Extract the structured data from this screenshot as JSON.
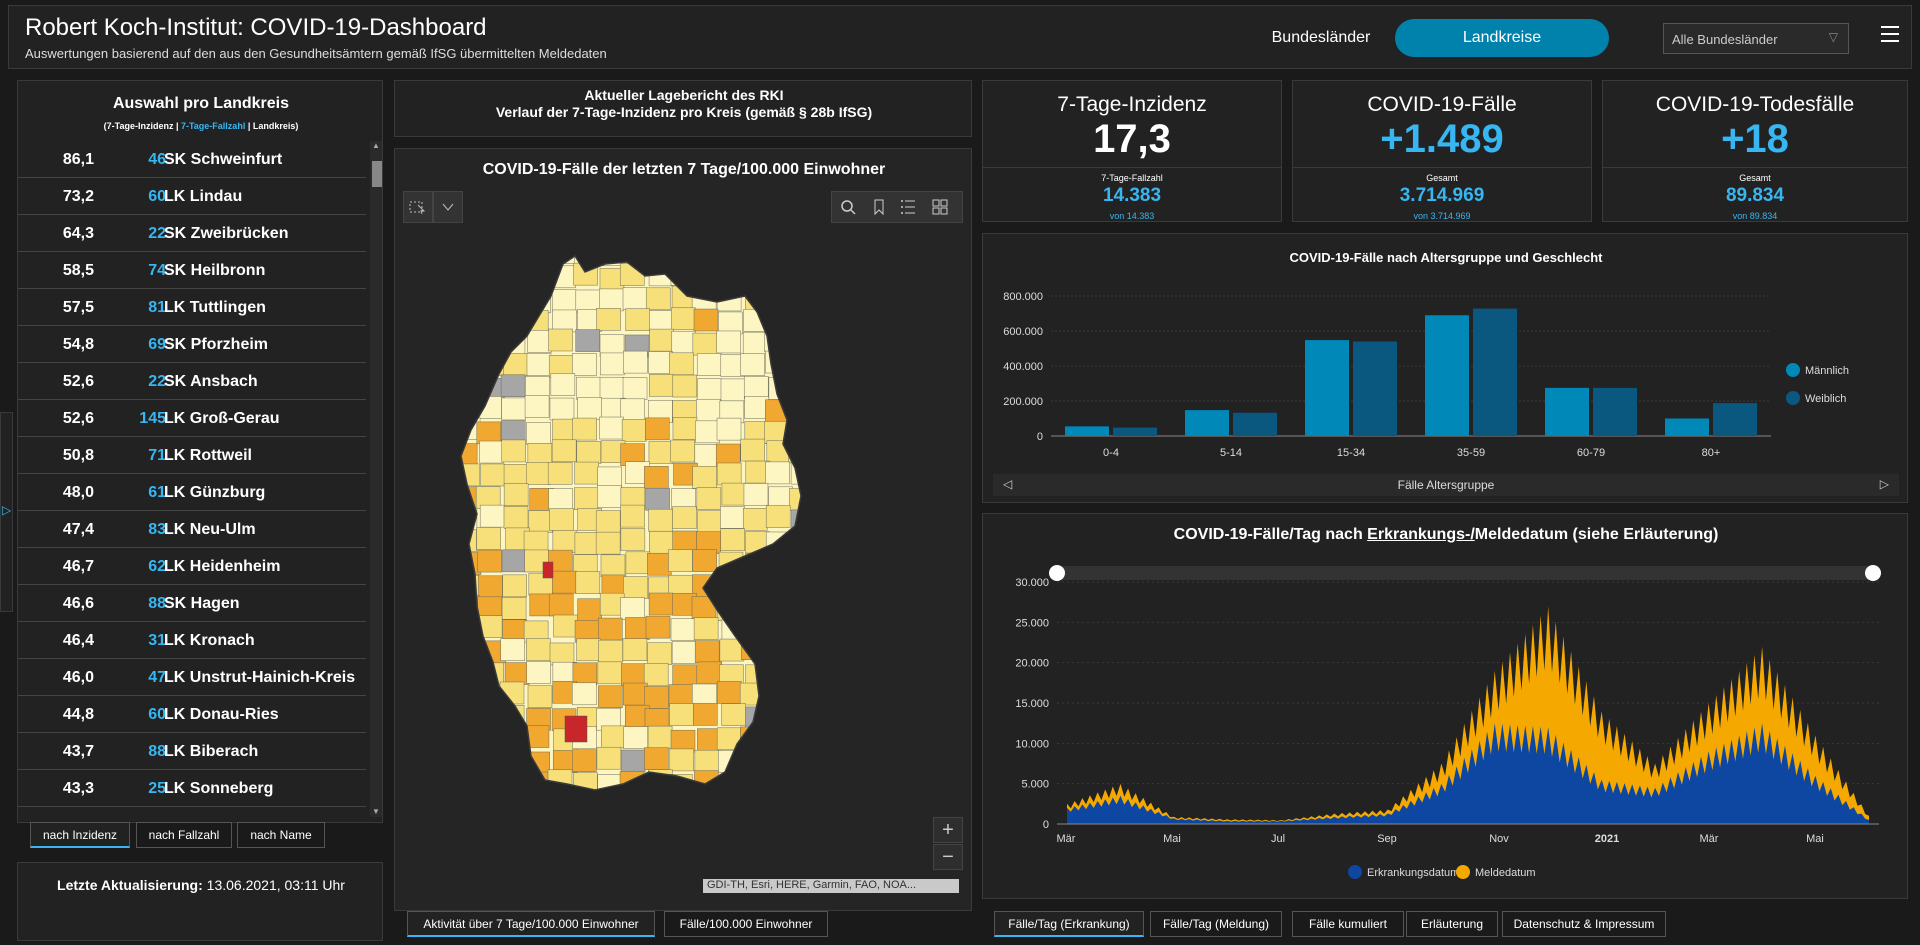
{
  "header": {
    "title": "Robert Koch-Institut: COVID-19-Dashboard",
    "subtitle": "Auswertungen basierend auf den aus den Gesundheitsämtern gemäß IfSG übermittelten Meldedaten",
    "btn_bundeslaender": "Bundesländer",
    "btn_landkreise": "Landkreise",
    "select_value": "Alle Bundesländer"
  },
  "list": {
    "title": "Auswahl pro Landkreis",
    "sub_a": "(7-Tage-Inzidenz | ",
    "sub_b": "7-Tage-Fallzahl",
    "sub_c": " | Landkreis)",
    "rows": [
      {
        "inc": "86,1",
        "cnt": "46",
        "name": "SK Schweinfurt"
      },
      {
        "inc": "73,2",
        "cnt": "60",
        "name": "LK Lindau"
      },
      {
        "inc": "64,3",
        "cnt": "22",
        "name": "SK Zweibrücken"
      },
      {
        "inc": "58,5",
        "cnt": "74",
        "name": "SK Heilbronn"
      },
      {
        "inc": "57,5",
        "cnt": "81",
        "name": "LK Tuttlingen"
      },
      {
        "inc": "54,8",
        "cnt": "69",
        "name": "SK Pforzheim"
      },
      {
        "inc": "52,6",
        "cnt": "22",
        "name": "SK Ansbach"
      },
      {
        "inc": "52,6",
        "cnt": "145",
        "name": "LK Groß-Gerau"
      },
      {
        "inc": "50,8",
        "cnt": "71",
        "name": "LK Rottweil"
      },
      {
        "inc": "48,0",
        "cnt": "61",
        "name": "LK Günzburg"
      },
      {
        "inc": "47,4",
        "cnt": "83",
        "name": "LK Neu-Ulm"
      },
      {
        "inc": "46,7",
        "cnt": "62",
        "name": "LK Heidenheim"
      },
      {
        "inc": "46,6",
        "cnt": "88",
        "name": "SK Hagen"
      },
      {
        "inc": "46,4",
        "cnt": "31",
        "name": "LK Kronach"
      },
      {
        "inc": "46,0",
        "cnt": "47",
        "name": "LK Unstrut-Hainich-Kreis"
      },
      {
        "inc": "44,8",
        "cnt": "60",
        "name": "LK Donau-Ries"
      },
      {
        "inc": "43,7",
        "cnt": "88",
        "name": "LK Biberach"
      },
      {
        "inc": "43,3",
        "cnt": "25",
        "name": "LK Sonneberg"
      }
    ],
    "tabs": [
      "nach Inzidenz",
      "nach Fallzahl",
      "nach Name"
    ]
  },
  "update": {
    "label": "Letzte Aktualisierung:",
    "value": " 13.06.2021, 03:11 Uhr"
  },
  "report": {
    "line1": "Aktueller Lagebericht des RKI",
    "line2": "Verlauf der 7-Tage-Inzidenz pro Kreis (gemäß § 28b IfSG)"
  },
  "map": {
    "title": "COVID-19-Fälle der letzten 7 Tage/100.000 Einwohner",
    "attribution": "GDI-TH, Esri, HERE, Garmin, FAO, NOA...",
    "zoom_in": "+",
    "zoom_out": "−",
    "tabs": [
      "Aktivität über 7 Tage/100.000 Einwohner",
      "Fälle/100.000 Einwohner"
    ],
    "fill_colors": {
      "low": "#fdf6c3",
      "mid": "#f7e07a",
      "high": "#f0a830",
      "higher": "#e06a20",
      "max": "#c8262a",
      "nodata": "#a6a6a6"
    }
  },
  "kpis": [
    {
      "title": "7-Tage-Inzidenz",
      "value": "17,3",
      "sub": "7-Tage-Fallzahl",
      "num": "14.383",
      "foot": "von 14.383",
      "value_color": "#ffffff"
    },
    {
      "title": "COVID-19-Fälle",
      "value": "+1.489",
      "sub": "Gesamt",
      "num": "3.714.969",
      "foot": "von 3.714.969",
      "value_color": "#38b6f1"
    },
    {
      "title": "COVID-19-Todesfälle",
      "value": "+18",
      "sub": "Gesamt",
      "num": "89.834",
      "foot": "von 89.834",
      "value_color": "#38b6f1"
    }
  ],
  "age_chart": {
    "title": "COVID-19-Fälle nach Altersgruppe und Geschlecht",
    "footer": "Fälle Altersgruppe"
  },
  "day_chart": {
    "title_a": "COVID-19-Fälle/Tag nach ",
    "title_u": "Erkrankungs-/",
    "title_b": "Meldedatum (siehe Erläuterung)",
    "tabs": [
      "Fälle/Tag (Erkrankung)",
      "Fälle/Tag (Meldung)",
      "Fälle kumuliert",
      "Erläuterung",
      "Datenschutz & Impressum"
    ]
  },
  "chart_data": [
    {
      "type": "bar",
      "title": "COVID-19-Fälle nach Altersgruppe und Geschlecht",
      "xlabel": "Fälle Altersgruppe",
      "categories": [
        "0-4",
        "5-14",
        "15-34",
        "35-59",
        "60-79",
        "80+"
      ],
      "series": [
        {
          "name": "Männlich",
          "color": "#0088b8",
          "values": [
            55000,
            148000,
            548000,
            690000,
            275000,
            100000
          ]
        },
        {
          "name": "Weiblich",
          "color": "#0a5780",
          "values": [
            48000,
            133000,
            540000,
            728000,
            275000,
            188000
          ]
        }
      ],
      "ylim": [
        0,
        800000
      ],
      "yticks": [
        "0",
        "200.000",
        "400.000",
        "600.000",
        "800.000"
      ],
      "legend": "right"
    },
    {
      "type": "area",
      "title": "COVID-19-Fälle/Tag nach Erkrankungs-/Meldedatum (siehe Erläuterung)",
      "x_ticks": [
        "Mär",
        "Mai",
        "Jul",
        "Sep",
        "Nov",
        "2021",
        "Mär",
        "Mai"
      ],
      "yticks": [
        "0",
        "5.000",
        "10.000",
        "15.000",
        "20.000",
        "25.000",
        "30.000"
      ],
      "ylim": [
        0,
        30000
      ],
      "series": [
        {
          "name": "Erkrankungsdatum",
          "color": "#0d47a1",
          "x": [
            "Mär 2020",
            "Apr 2020",
            "Mai 2020",
            "Jun 2020",
            "Jul 2020",
            "Aug 2020",
            "Sep 2020",
            "Okt 2020",
            "Nov 2020",
            "Dez 2020",
            "Jan 2021",
            "Feb 2021",
            "Mär 2021",
            "Apr 2021",
            "Mai 2021",
            "Jun 2021"
          ],
          "values": [
            2000,
            3500,
            700,
            400,
            400,
            900,
            1300,
            5000,
            12500,
            12000,
            5500,
            4500,
            9000,
            12500,
            6000,
            500
          ]
        },
        {
          "name": "Meldedatum",
          "color": "#f5a800",
          "x": [
            "Mär 2020",
            "Apr 2020",
            "Mai 2020",
            "Jun 2020",
            "Jul 2020",
            "Aug 2020",
            "Sep 2020",
            "Okt 2020",
            "Nov 2020",
            "Dez 2020",
            "Jan 2021",
            "Feb 2021",
            "Mär 2021",
            "Apr 2021",
            "Mai 2021",
            "Jun 2021"
          ],
          "values": [
            2500,
            5000,
            900,
            600,
            500,
            1300,
            1800,
            7500,
            19000,
            27000,
            14000,
            7500,
            15000,
            22000,
            11000,
            1000
          ]
        }
      ],
      "legend": "bottom"
    }
  ]
}
